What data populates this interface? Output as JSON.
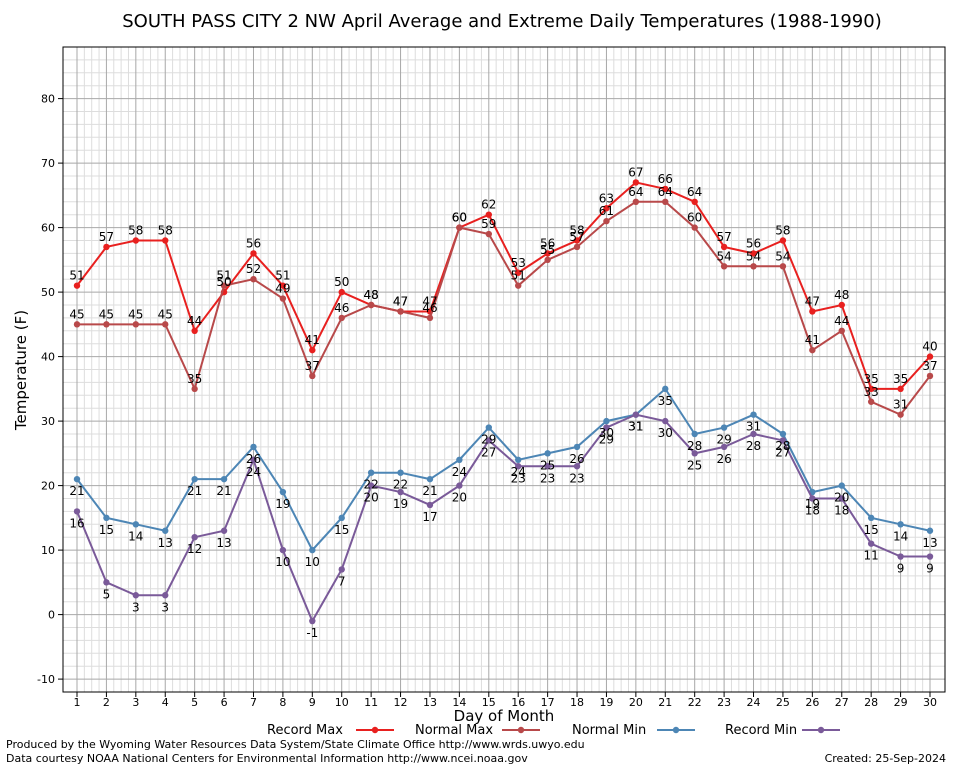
{
  "chart_data": {
    "type": "line",
    "title": "SOUTH PASS CITY 2 NW April Average and Extreme Daily Temperatures (1988-1990)",
    "xlabel": "Day of Month",
    "ylabel": "Temperature (F)",
    "xlim": [
      1,
      30
    ],
    "ylim": [
      -12,
      88
    ],
    "yticks": [
      -10,
      0,
      10,
      20,
      30,
      40,
      50,
      60,
      70,
      80
    ],
    "x": [
      1,
      2,
      3,
      4,
      5,
      6,
      7,
      8,
      9,
      10,
      11,
      12,
      13,
      14,
      15,
      16,
      17,
      18,
      19,
      20,
      21,
      22,
      23,
      24,
      25,
      26,
      27,
      28,
      29,
      30
    ],
    "grid": true,
    "legend_position": "bottom",
    "series": [
      {
        "name": "Record Max",
        "color": "#e8201f",
        "values": [
          51,
          57,
          58,
          58,
          44,
          50,
          56,
          51,
          41,
          50,
          48,
          47,
          47,
          60,
          62,
          53,
          56,
          58,
          63,
          67,
          66,
          64,
          57,
          56,
          58,
          47,
          48,
          35,
          35,
          40
        ]
      },
      {
        "name": "Normal Max",
        "color": "#b8494a",
        "values": [
          45,
          45,
          45,
          45,
          35,
          51,
          52,
          49,
          37,
          46,
          48,
          47,
          46,
          60,
          59,
          51,
          55,
          57,
          61,
          64,
          64,
          60,
          54,
          54,
          54,
          41,
          44,
          33,
          31,
          37
        ]
      },
      {
        "name": "Normal Min",
        "color": "#4d86b5",
        "values": [
          21,
          15,
          14,
          13,
          21,
          21,
          26,
          19,
          10,
          15,
          22,
          22,
          21,
          24,
          29,
          24,
          25,
          26,
          30,
          31,
          35,
          28,
          29,
          31,
          28,
          19,
          20,
          15,
          14,
          13
        ]
      },
      {
        "name": "Record Min",
        "color": "#7a5a99",
        "values": [
          16,
          5,
          3,
          3,
          12,
          13,
          24,
          10,
          -1,
          7,
          20,
          19,
          17,
          20,
          27,
          23,
          23,
          23,
          29,
          31,
          30,
          25,
          26,
          28,
          27,
          18,
          18,
          11,
          9,
          9
        ]
      }
    ]
  },
  "footer": {
    "line1": "Produced by the Wyoming Water Resources Data System/State Climate Office http://www.wrds.uwyo.edu",
    "line2": "Data courtesy NOAA National Centers for Environmental Information http://www.ncei.noaa.gov",
    "created": "Created:  25-Sep-2024"
  }
}
